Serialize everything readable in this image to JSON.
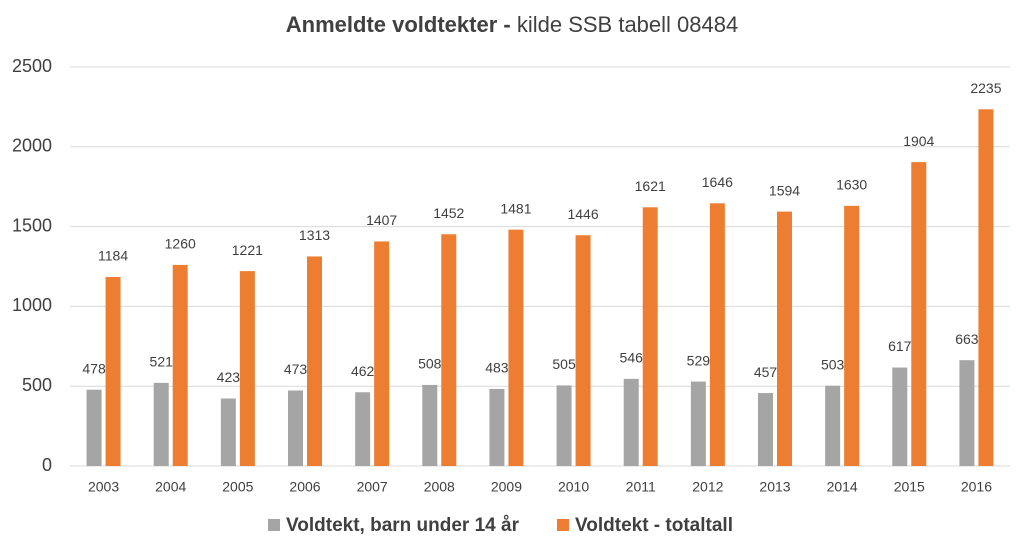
{
  "chart_data": {
    "type": "bar",
    "title": [
      "Anmeldte voldtekter -",
      "kilde SSB tabell 08484"
    ],
    "categories": [
      "2003",
      "2004",
      "2005",
      "2006",
      "2007",
      "2008",
      "2009",
      "2010",
      "2011",
      "2012",
      "2013",
      "2014",
      "2015",
      "2016"
    ],
    "series": [
      {
        "name": "Voldtekt, barn under 14 år",
        "color": "#a5a5a5",
        "values": [
          478,
          521,
          423,
          473,
          462,
          508,
          483,
          505,
          546,
          529,
          457,
          503,
          617,
          663
        ]
      },
      {
        "name": "Voldtekt - totaltall",
        "color": "#ed7d31",
        "values": [
          1184,
          1260,
          1221,
          1313,
          1407,
          1452,
          1481,
          1446,
          1621,
          1646,
          1594,
          1630,
          1904,
          2235
        ]
      }
    ],
    "ylim": [
      0,
      2500
    ],
    "yticks": [
      0,
      500,
      1000,
      1500,
      2000,
      2500
    ],
    "grid": true
  }
}
